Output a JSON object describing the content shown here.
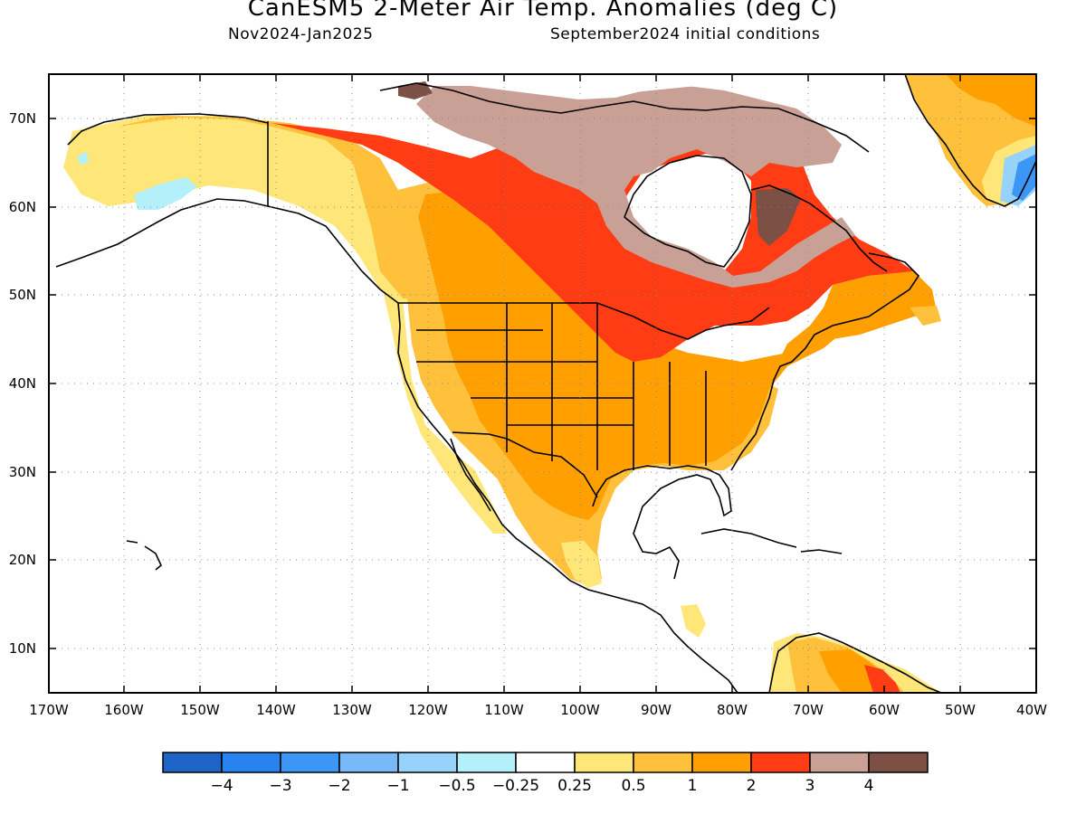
{
  "title": "CanESM5 2-Meter Air Temp. Anomalies (deg C)",
  "subtitle_left": "Nov2024-Jan2025",
  "subtitle_right": "September2024 initial conditions",
  "map": {
    "lon_range": [
      -170,
      -40
    ],
    "lat_range": [
      5,
      75
    ],
    "lon_ticks": [
      "170W",
      "160W",
      "150W",
      "140W",
      "130W",
      "120W",
      "110W",
      "100W",
      "90W",
      "80W",
      "70W",
      "60W",
      "50W",
      "40W"
    ],
    "lat_ticks": [
      "10N",
      "20N",
      "30N",
      "40N",
      "50N",
      "60N",
      "70N"
    ]
  },
  "colorbar": {
    "colors": [
      "#1e64c8",
      "#2882f0",
      "#3c96f5",
      "#78b9fa",
      "#96d2fa",
      "#b4f0fa",
      "#ffffff",
      "#ffe678",
      "#ffc03c",
      "#ffa000",
      "#ff3c14",
      "#c8a096",
      "#7d5046"
    ],
    "labels": [
      "-4",
      "-3",
      "-2",
      "-1",
      "-0.5",
      "-0.25",
      "0.25",
      "0.5",
      "1",
      "2",
      "3",
      "4"
    ]
  },
  "regions": {
    "cool_alaska": "#b4f0fa",
    "anomaly_05": "#ffe678",
    "anomaly_1": "#ffc03c",
    "anomaly_2": "#ffa000",
    "anomaly_3": "#ff3c14",
    "anomaly_4": "#c8a096",
    "anomaly_gt4": "#7d5046",
    "greenland_cold_1": "#96d2fa",
    "greenland_cold_2": "#3c96f5"
  }
}
